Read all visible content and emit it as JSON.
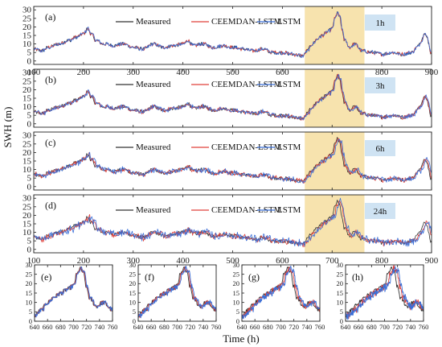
{
  "figure": {
    "ylabel": "SWH (m)",
    "xlabel": "Time (h)"
  },
  "colors": {
    "measured": "#333333",
    "ceemdan_lstm": "#e0403a",
    "lstm": "#3a6fd8",
    "highlight": "#f7e3ae",
    "horizon_box": "#cfe3f3"
  },
  "chart_data": [
    {
      "type": "line",
      "panel": "(a)",
      "horizon": "1h",
      "x_range": [
        100,
        900
      ],
      "ylim": [
        -2,
        32
      ],
      "y_ticks": [
        0,
        5,
        10,
        15,
        20,
        25,
        30
      ],
      "x_ticks": [
        100,
        200,
        300,
        400,
        500,
        600,
        700,
        800,
        900
      ],
      "highlight_x": [
        645,
        765
      ],
      "legend": [
        "Measured",
        "CEEMDAN-LSTM",
        "LSTM"
      ],
      "series": [
        {
          "name": "Measured",
          "lag": 0,
          "noise": 0
        },
        {
          "name": "CEEMDAN-LSTM",
          "lag": 0.5,
          "noise": 0.2
        },
        {
          "name": "LSTM",
          "lag": 1,
          "noise": 0.3
        }
      ]
    },
    {
      "type": "line",
      "panel": "(b)",
      "horizon": "3h",
      "x_range": [
        100,
        900
      ],
      "ylim": [
        -2,
        32
      ],
      "y_ticks": [
        0,
        5,
        10,
        15,
        20,
        25,
        30
      ],
      "highlight_x": [
        645,
        765
      ],
      "legend": [
        "Measured",
        "CEEMDAN-LSTM",
        "LSTM"
      ],
      "series": [
        {
          "name": "Measured",
          "lag": 0,
          "noise": 0
        },
        {
          "name": "CEEMDAN-LSTM",
          "lag": 1,
          "noise": 0.4
        },
        {
          "name": "LSTM",
          "lag": 2.5,
          "noise": 0.6
        }
      ]
    },
    {
      "type": "line",
      "panel": "(c)",
      "horizon": "6h",
      "x_range": [
        100,
        900
      ],
      "ylim": [
        -2,
        32
      ],
      "y_ticks": [
        0,
        5,
        10,
        15,
        20,
        25,
        30
      ],
      "highlight_x": [
        645,
        765
      ],
      "legend": [
        "Measured",
        "CEEMDAN-LSTM",
        "LSTM"
      ],
      "series": [
        {
          "name": "Measured",
          "lag": 0,
          "noise": 0
        },
        {
          "name": "CEEMDAN-LSTM",
          "lag": 2,
          "noise": 0.7
        },
        {
          "name": "LSTM",
          "lag": 4,
          "noise": 1.0
        }
      ]
    },
    {
      "type": "line",
      "panel": "(d)",
      "horizon": "24h",
      "x_range": [
        100,
        900
      ],
      "ylim": [
        -2,
        32
      ],
      "y_ticks": [
        0,
        5,
        10,
        15,
        20,
        25,
        30
      ],
      "x_ticks": [
        100,
        200,
        300,
        400,
        500,
        600,
        700,
        800,
        900
      ],
      "highlight_x": [
        645,
        765
      ],
      "legend": [
        "Measured",
        "CEEMDAN-LSTM",
        "LSTM"
      ],
      "series": [
        {
          "name": "Measured",
          "lag": 0,
          "noise": 0
        },
        {
          "name": "CEEMDAN-LSTM",
          "lag": 4,
          "noise": 1.2
        },
        {
          "name": "LSTM",
          "lag": 6,
          "noise": 1.6
        }
      ]
    },
    {
      "type": "line",
      "panel": "(e)",
      "x_range": [
        640,
        760
      ],
      "ylim": [
        0,
        30
      ],
      "y_ticks": [
        0,
        5,
        10,
        15,
        20,
        25,
        30
      ],
      "x_ticks": [
        640,
        660,
        680,
        700,
        720,
        740,
        760
      ],
      "series": [
        {
          "name": "Measured",
          "lag": 0,
          "noise": 0
        },
        {
          "name": "CEEMDAN-LSTM",
          "lag": 0.7,
          "noise": 0.2
        },
        {
          "name": "LSTM",
          "lag": 1.5,
          "noise": 0.3
        }
      ]
    },
    {
      "type": "line",
      "panel": "(f)",
      "x_range": [
        640,
        760
      ],
      "ylim": [
        0,
        30
      ],
      "y_ticks": [
        0,
        5,
        10,
        15,
        20,
        25,
        30
      ],
      "x_ticks": [
        640,
        660,
        680,
        700,
        720,
        740,
        760
      ],
      "series": [
        {
          "name": "Measured",
          "lag": 0,
          "noise": 0
        },
        {
          "name": "CEEMDAN-LSTM",
          "lag": 1.5,
          "noise": 0.4
        },
        {
          "name": "LSTM",
          "lag": 3,
          "noise": 0.6
        }
      ]
    },
    {
      "type": "line",
      "panel": "(g)",
      "x_range": [
        640,
        760
      ],
      "ylim": [
        0,
        30
      ],
      "y_ticks": [
        0,
        5,
        10,
        15,
        20,
        25,
        30
      ],
      "x_ticks": [
        640,
        660,
        680,
        700,
        720,
        740,
        760
      ],
      "series": [
        {
          "name": "Measured",
          "lag": 0,
          "noise": 0
        },
        {
          "name": "CEEMDAN-LSTM",
          "lag": 2.5,
          "noise": 0.8
        },
        {
          "name": "LSTM",
          "lag": 4.5,
          "noise": 1.0
        }
      ]
    },
    {
      "type": "line",
      "panel": "(h)",
      "x_range": [
        640,
        760
      ],
      "ylim": [
        0,
        30
      ],
      "y_ticks": [
        0,
        5,
        10,
        15,
        20,
        25,
        30
      ],
      "x_ticks": [
        640,
        660,
        680,
        700,
        720,
        740,
        760
      ],
      "series": [
        {
          "name": "Measured",
          "lag": 0,
          "noise": 0
        },
        {
          "name": "CEEMDAN-LSTM",
          "lag": 4,
          "noise": 1.2
        },
        {
          "name": "LSTM",
          "lag": 6,
          "noise": 1.5
        }
      ]
    }
  ],
  "measured_keypoints": {
    "x": [
      100,
      115,
      130,
      150,
      170,
      185,
      200,
      208,
      215,
      225,
      240,
      260,
      280,
      300,
      320,
      340,
      360,
      380,
      400,
      410,
      420,
      440,
      460,
      480,
      500,
      520,
      540,
      560,
      580,
      600,
      620,
      640,
      650,
      660,
      670,
      680,
      690,
      700,
      705,
      710,
      715,
      720,
      725,
      735,
      745,
      760,
      780,
      800,
      820,
      840,
      860,
      870,
      880,
      885,
      890,
      900
    ],
    "y": [
      7,
      6,
      8,
      10,
      12,
      14,
      16,
      19,
      16,
      12,
      10,
      9,
      10,
      8,
      7,
      10,
      8,
      9,
      10,
      12,
      9,
      10,
      8,
      9,
      8,
      7,
      6,
      7,
      5,
      5,
      4,
      3,
      6,
      10,
      13,
      15,
      17,
      19,
      25,
      28,
      26,
      18,
      12,
      8,
      10,
      6,
      5,
      4,
      5,
      4,
      5,
      8,
      12,
      17,
      14,
      4
    ]
  }
}
